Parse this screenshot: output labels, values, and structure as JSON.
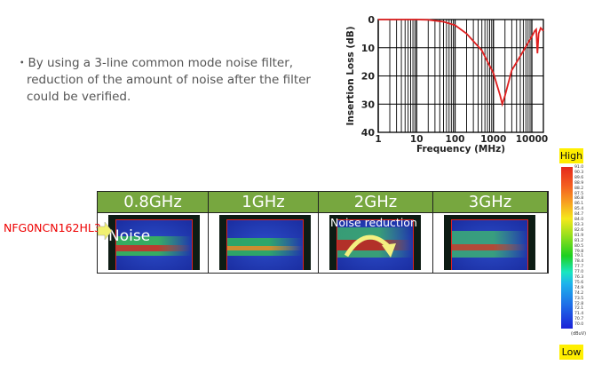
{
  "bullet": {
    "lines": [
      "・By using a 3-line common mode noise filter,",
      "reduction of the amount of noise after the filter",
      "could be verified."
    ]
  },
  "chart_data": {
    "type": "line",
    "xlabel": "Frequency (MHz)",
    "ylabel": "Insertion Loss (dB)",
    "xscale": "log",
    "xlim": [
      1,
      20000
    ],
    "ylim": [
      0,
      40
    ],
    "y_inverted": true,
    "xticks": [
      "1",
      "10",
      "100",
      "1000",
      "10000"
    ],
    "yticks": [
      "0",
      "10",
      "20",
      "30",
      "40"
    ],
    "grid": true,
    "series": [
      {
        "color": "#e02020",
        "x": [
          1,
          10,
          20,
          50,
          100,
          200,
          500,
          1000,
          1500,
          1700,
          2000,
          3000,
          5000,
          10000,
          12000,
          13000,
          14000,
          15000,
          17000,
          20000
        ],
        "y": [
          0,
          0,
          0.1,
          0.8,
          2,
          5,
          11,
          19,
          27,
          30,
          27,
          18,
          13,
          6,
          4,
          3.5,
          12,
          5,
          3,
          4
        ]
      }
    ]
  },
  "table": {
    "headers": [
      "0.8GHz",
      "1GHz",
      "2GHz",
      "3GHz"
    ],
    "noise_label": "Noise",
    "reduction_label": "Noise reduction",
    "part_label": "NFG0NCN162HL3"
  },
  "scale": {
    "high": "High",
    "low": "Low",
    "unit": "(dBuV)",
    "ticks": [
      "91.0",
      "90.3",
      "89.6",
      "88.9",
      "88.2",
      "87.5",
      "86.8",
      "86.1",
      "85.4",
      "84.7",
      "84.0",
      "83.3",
      "82.6",
      "81.9",
      "81.2",
      "80.5",
      "79.8",
      "79.1",
      "78.4",
      "77.7",
      "77.0",
      "76.3",
      "75.6",
      "74.9",
      "74.2",
      "73.5",
      "72.8",
      "72.1",
      "71.4",
      "70.7",
      "70.0"
    ]
  }
}
